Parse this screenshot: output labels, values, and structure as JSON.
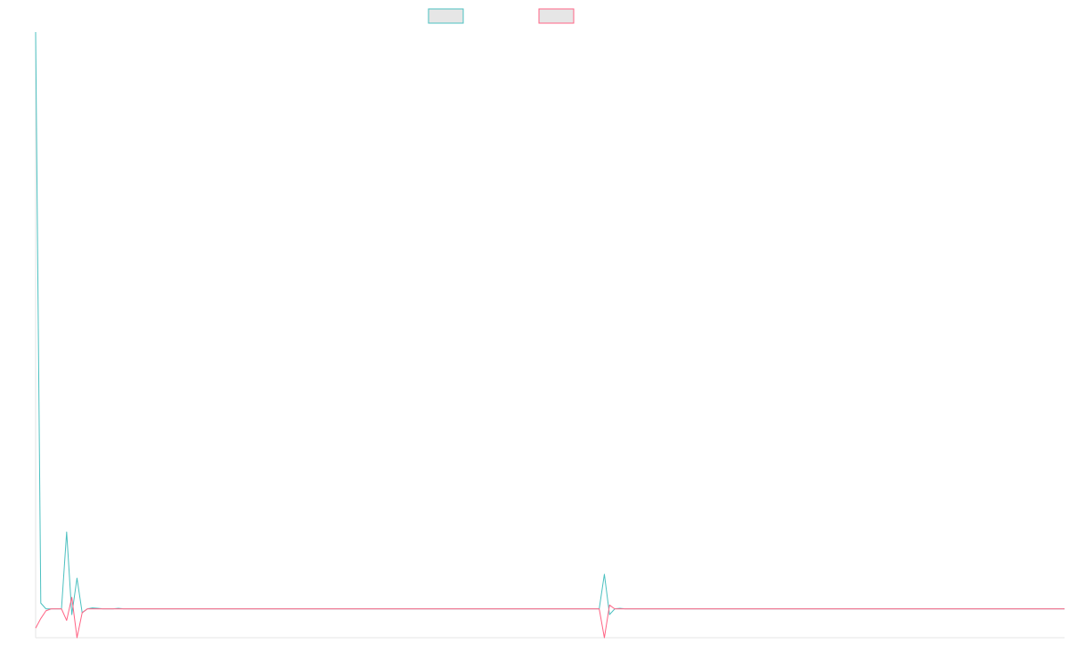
{
  "chart_data": {
    "type": "line",
    "title": "",
    "xlabel": "",
    "ylabel": "",
    "grid": false,
    "legend_position": "top-center",
    "x_count": 200,
    "ylim": [
      -1.5,
      30
    ],
    "series": [
      {
        "color": "#4bc0c0",
        "fill": "#e6e6e6",
        "spikes": [
          [
            0,
            30.0
          ],
          [
            1,
            0.3
          ],
          [
            2,
            0.0
          ],
          [
            6,
            4.0
          ],
          [
            7,
            -0.3
          ],
          [
            8,
            1.6
          ],
          [
            9,
            -0.2
          ],
          [
            11,
            0.05
          ],
          [
            12,
            0.03
          ],
          [
            16,
            0.03
          ],
          [
            110,
            1.8
          ],
          [
            111,
            -0.3
          ],
          [
            113,
            0.03
          ]
        ]
      },
      {
        "color": "#ff6384",
        "fill": "#e6e6e6",
        "spikes": [
          [
            0,
            -1.0
          ],
          [
            1,
            -0.5
          ],
          [
            2,
            -0.1
          ],
          [
            6,
            -0.6
          ],
          [
            7,
            0.6
          ],
          [
            8,
            -1.5
          ],
          [
            9,
            -0.2
          ],
          [
            110,
            -1.5
          ],
          [
            111,
            0.2
          ]
        ]
      }
    ]
  }
}
